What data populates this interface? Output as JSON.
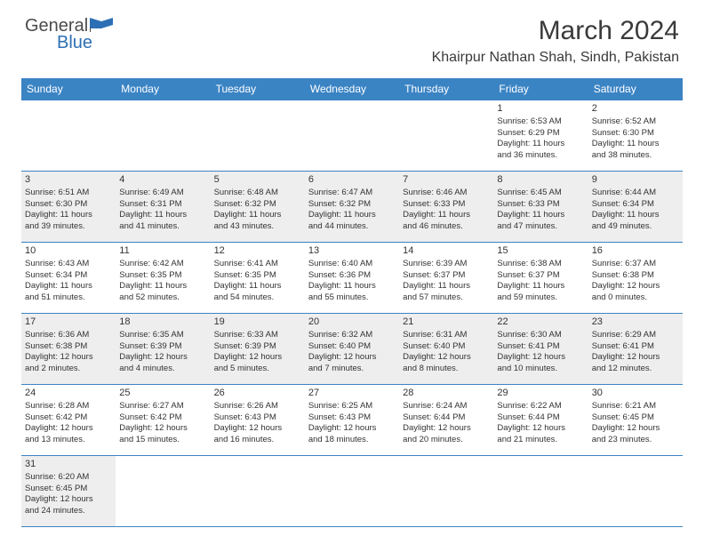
{
  "logo": {
    "general": "General",
    "blue": "Blue"
  },
  "title": "March 2024",
  "location": "Khairpur Nathan Shah, Sindh, Pakistan",
  "colors": {
    "header_bg": "#3b84c4",
    "header_text": "#ffffff",
    "row_shade": "#eeeeee",
    "border": "#3b84c4",
    "text": "#333333",
    "logo_gray": "#4a4a4a",
    "logo_blue": "#2d6fb5"
  },
  "day_headers": [
    "Sunday",
    "Monday",
    "Tuesday",
    "Wednesday",
    "Thursday",
    "Friday",
    "Saturday"
  ],
  "weeks": [
    {
      "shaded": false,
      "days": [
        null,
        null,
        null,
        null,
        null,
        {
          "n": "1",
          "sr": "Sunrise: 6:53 AM",
          "ss": "Sunset: 6:29 PM",
          "dl1": "Daylight: 11 hours",
          "dl2": "and 36 minutes."
        },
        {
          "n": "2",
          "sr": "Sunrise: 6:52 AM",
          "ss": "Sunset: 6:30 PM",
          "dl1": "Daylight: 11 hours",
          "dl2": "and 38 minutes."
        }
      ]
    },
    {
      "shaded": true,
      "days": [
        {
          "n": "3",
          "sr": "Sunrise: 6:51 AM",
          "ss": "Sunset: 6:30 PM",
          "dl1": "Daylight: 11 hours",
          "dl2": "and 39 minutes."
        },
        {
          "n": "4",
          "sr": "Sunrise: 6:49 AM",
          "ss": "Sunset: 6:31 PM",
          "dl1": "Daylight: 11 hours",
          "dl2": "and 41 minutes."
        },
        {
          "n": "5",
          "sr": "Sunrise: 6:48 AM",
          "ss": "Sunset: 6:32 PM",
          "dl1": "Daylight: 11 hours",
          "dl2": "and 43 minutes."
        },
        {
          "n": "6",
          "sr": "Sunrise: 6:47 AM",
          "ss": "Sunset: 6:32 PM",
          "dl1": "Daylight: 11 hours",
          "dl2": "and 44 minutes."
        },
        {
          "n": "7",
          "sr": "Sunrise: 6:46 AM",
          "ss": "Sunset: 6:33 PM",
          "dl1": "Daylight: 11 hours",
          "dl2": "and 46 minutes."
        },
        {
          "n": "8",
          "sr": "Sunrise: 6:45 AM",
          "ss": "Sunset: 6:33 PM",
          "dl1": "Daylight: 11 hours",
          "dl2": "and 47 minutes."
        },
        {
          "n": "9",
          "sr": "Sunrise: 6:44 AM",
          "ss": "Sunset: 6:34 PM",
          "dl1": "Daylight: 11 hours",
          "dl2": "and 49 minutes."
        }
      ]
    },
    {
      "shaded": false,
      "days": [
        {
          "n": "10",
          "sr": "Sunrise: 6:43 AM",
          "ss": "Sunset: 6:34 PM",
          "dl1": "Daylight: 11 hours",
          "dl2": "and 51 minutes."
        },
        {
          "n": "11",
          "sr": "Sunrise: 6:42 AM",
          "ss": "Sunset: 6:35 PM",
          "dl1": "Daylight: 11 hours",
          "dl2": "and 52 minutes."
        },
        {
          "n": "12",
          "sr": "Sunrise: 6:41 AM",
          "ss": "Sunset: 6:35 PM",
          "dl1": "Daylight: 11 hours",
          "dl2": "and 54 minutes."
        },
        {
          "n": "13",
          "sr": "Sunrise: 6:40 AM",
          "ss": "Sunset: 6:36 PM",
          "dl1": "Daylight: 11 hours",
          "dl2": "and 55 minutes."
        },
        {
          "n": "14",
          "sr": "Sunrise: 6:39 AM",
          "ss": "Sunset: 6:37 PM",
          "dl1": "Daylight: 11 hours",
          "dl2": "and 57 minutes."
        },
        {
          "n": "15",
          "sr": "Sunrise: 6:38 AM",
          "ss": "Sunset: 6:37 PM",
          "dl1": "Daylight: 11 hours",
          "dl2": "and 59 minutes."
        },
        {
          "n": "16",
          "sr": "Sunrise: 6:37 AM",
          "ss": "Sunset: 6:38 PM",
          "dl1": "Daylight: 12 hours",
          "dl2": "and 0 minutes."
        }
      ]
    },
    {
      "shaded": true,
      "days": [
        {
          "n": "17",
          "sr": "Sunrise: 6:36 AM",
          "ss": "Sunset: 6:38 PM",
          "dl1": "Daylight: 12 hours",
          "dl2": "and 2 minutes."
        },
        {
          "n": "18",
          "sr": "Sunrise: 6:35 AM",
          "ss": "Sunset: 6:39 PM",
          "dl1": "Daylight: 12 hours",
          "dl2": "and 4 minutes."
        },
        {
          "n": "19",
          "sr": "Sunrise: 6:33 AM",
          "ss": "Sunset: 6:39 PM",
          "dl1": "Daylight: 12 hours",
          "dl2": "and 5 minutes."
        },
        {
          "n": "20",
          "sr": "Sunrise: 6:32 AM",
          "ss": "Sunset: 6:40 PM",
          "dl1": "Daylight: 12 hours",
          "dl2": "and 7 minutes."
        },
        {
          "n": "21",
          "sr": "Sunrise: 6:31 AM",
          "ss": "Sunset: 6:40 PM",
          "dl1": "Daylight: 12 hours",
          "dl2": "and 8 minutes."
        },
        {
          "n": "22",
          "sr": "Sunrise: 6:30 AM",
          "ss": "Sunset: 6:41 PM",
          "dl1": "Daylight: 12 hours",
          "dl2": "and 10 minutes."
        },
        {
          "n": "23",
          "sr": "Sunrise: 6:29 AM",
          "ss": "Sunset: 6:41 PM",
          "dl1": "Daylight: 12 hours",
          "dl2": "and 12 minutes."
        }
      ]
    },
    {
      "shaded": false,
      "days": [
        {
          "n": "24",
          "sr": "Sunrise: 6:28 AM",
          "ss": "Sunset: 6:42 PM",
          "dl1": "Daylight: 12 hours",
          "dl2": "and 13 minutes."
        },
        {
          "n": "25",
          "sr": "Sunrise: 6:27 AM",
          "ss": "Sunset: 6:42 PM",
          "dl1": "Daylight: 12 hours",
          "dl2": "and 15 minutes."
        },
        {
          "n": "26",
          "sr": "Sunrise: 6:26 AM",
          "ss": "Sunset: 6:43 PM",
          "dl1": "Daylight: 12 hours",
          "dl2": "and 16 minutes."
        },
        {
          "n": "27",
          "sr": "Sunrise: 6:25 AM",
          "ss": "Sunset: 6:43 PM",
          "dl1": "Daylight: 12 hours",
          "dl2": "and 18 minutes."
        },
        {
          "n": "28",
          "sr": "Sunrise: 6:24 AM",
          "ss": "Sunset: 6:44 PM",
          "dl1": "Daylight: 12 hours",
          "dl2": "and 20 minutes."
        },
        {
          "n": "29",
          "sr": "Sunrise: 6:22 AM",
          "ss": "Sunset: 6:44 PM",
          "dl1": "Daylight: 12 hours",
          "dl2": "and 21 minutes."
        },
        {
          "n": "30",
          "sr": "Sunrise: 6:21 AM",
          "ss": "Sunset: 6:45 PM",
          "dl1": "Daylight: 12 hours",
          "dl2": "and 23 minutes."
        }
      ]
    },
    {
      "shaded": true,
      "days": [
        {
          "n": "31",
          "sr": "Sunrise: 6:20 AM",
          "ss": "Sunset: 6:45 PM",
          "dl1": "Daylight: 12 hours",
          "dl2": "and 24 minutes."
        },
        null,
        null,
        null,
        null,
        null,
        null
      ]
    }
  ]
}
